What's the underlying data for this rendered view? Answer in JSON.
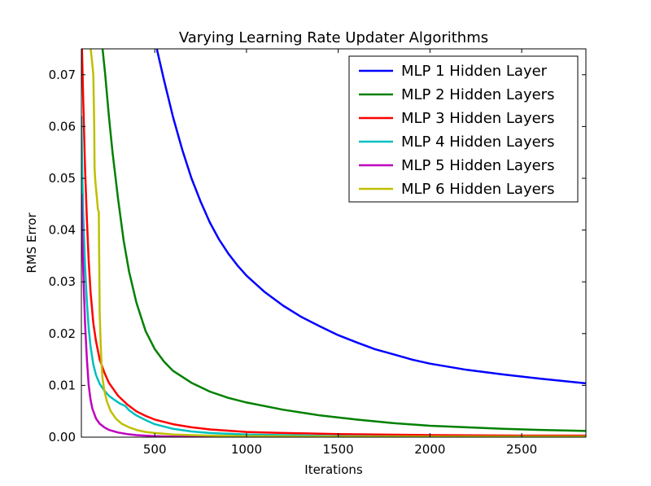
{
  "chart_data": {
    "type": "line",
    "title": "Varying Learning Rate Updater Algorithms",
    "xlabel": "Iterations",
    "ylabel": "RMS Error",
    "xlim": [
      100,
      2850
    ],
    "ylim": [
      0.0,
      0.075
    ],
    "xticks": [
      500,
      1000,
      1500,
      2000,
      2500
    ],
    "yticks": [
      0.0,
      0.01,
      0.02,
      0.03,
      0.04,
      0.05,
      0.06,
      0.07
    ],
    "ytick_labels": [
      "0.00",
      "0.01",
      "0.02",
      "0.03",
      "0.04",
      "0.05",
      "0.06",
      "0.07"
    ],
    "grid": false,
    "legend_position": "top-right",
    "series": [
      {
        "name": "MLP 1 Hidden Layer",
        "color": "#0000ff",
        "x": [
          510,
          550,
          600,
          650,
          700,
          750,
          800,
          850,
          900,
          950,
          1000,
          1100,
          1200,
          1300,
          1400,
          1500,
          1600,
          1700,
          1800,
          1900,
          2000,
          2200,
          2400,
          2600,
          2850
        ],
        "y": [
          0.0752,
          0.069,
          0.0618,
          0.0555,
          0.05,
          0.0455,
          0.0415,
          0.0382,
          0.0355,
          0.0332,
          0.0312,
          0.028,
          0.0254,
          0.0232,
          0.0214,
          0.0197,
          0.0183,
          0.017,
          0.016,
          0.015,
          0.0142,
          0.013,
          0.0121,
          0.0113,
          0.0104
        ]
      },
      {
        "name": "MLP 2 Hidden Layers",
        "color": "#008000",
        "x": [
          215,
          230,
          250,
          270,
          300,
          330,
          360,
          400,
          450,
          500,
          550,
          600,
          700,
          800,
          900,
          1000,
          1200,
          1400,
          1600,
          1800,
          2000,
          2200,
          2400,
          2600,
          2850
        ],
        "y": [
          0.0752,
          0.07,
          0.062,
          0.055,
          0.046,
          0.038,
          0.032,
          0.026,
          0.0205,
          0.017,
          0.0146,
          0.0128,
          0.0105,
          0.0088,
          0.0076,
          0.0067,
          0.0053,
          0.0042,
          0.0034,
          0.0027,
          0.0022,
          0.0019,
          0.0016,
          0.0014,
          0.0012
        ]
      },
      {
        "name": "MLP 3 Hidden Layers",
        "color": "#ff0000",
        "x": [
          103,
          110,
          120,
          130,
          140,
          150,
          165,
          180,
          200,
          225,
          250,
          300,
          350,
          400,
          450,
          500,
          600,
          700,
          800,
          1000,
          1200,
          1500,
          2000,
          2500,
          2850
        ],
        "y": [
          0.0752,
          0.065,
          0.052,
          0.042,
          0.034,
          0.028,
          0.022,
          0.0185,
          0.015,
          0.0125,
          0.0105,
          0.008,
          0.0063,
          0.005,
          0.0041,
          0.0034,
          0.0025,
          0.0019,
          0.0015,
          0.001,
          0.0008,
          0.0006,
          0.0004,
          0.0003,
          0.0003
        ]
      },
      {
        "name": "MLP 4 Hidden Layers",
        "color": "#00bfbf",
        "x": [
          100,
          105,
          110,
          120,
          130,
          140,
          150,
          165,
          180,
          200,
          225,
          250,
          280,
          310,
          340,
          360,
          400,
          450,
          500,
          600,
          700,
          800,
          1000,
          1500,
          2000,
          2850
        ],
        "y": [
          0.062,
          0.051,
          0.043,
          0.033,
          0.026,
          0.021,
          0.0175,
          0.014,
          0.012,
          0.0103,
          0.009,
          0.008,
          0.0072,
          0.0065,
          0.006,
          0.0052,
          0.0042,
          0.0033,
          0.0025,
          0.0016,
          0.0011,
          0.0008,
          0.0005,
          0.0002,
          0.0001,
          0.0001
        ]
      },
      {
        "name": "MLP 5 Hidden Layers",
        "color": "#bf00bf",
        "x": [
          100,
          105,
          110,
          115,
          120,
          130,
          140,
          150,
          160,
          180,
          200,
          225,
          250,
          300,
          350,
          400,
          500,
          600,
          800,
          1000,
          1500,
          2000,
          2850
        ],
        "y": [
          0.047,
          0.039,
          0.032,
          0.027,
          0.022,
          0.015,
          0.01,
          0.0072,
          0.0055,
          0.0036,
          0.0026,
          0.0019,
          0.0014,
          0.0009,
          0.0006,
          0.0004,
          0.0002,
          0.0001,
          0.0001,
          0.0,
          0.0,
          0.0,
          0.0
        ]
      },
      {
        "name": "MLP 6 Hidden Layers",
        "color": "#bfbf00",
        "x": [
          150,
          160,
          165,
          170,
          172,
          175,
          180,
          185,
          190,
          195,
          200,
          205,
          210,
          215,
          225,
          240,
          260,
          290,
          320,
          360,
          400,
          450,
          500,
          600,
          700,
          800,
          1000,
          1500,
          2000,
          2850
        ],
        "y": [
          0.0752,
          0.072,
          0.07,
          0.06,
          0.052,
          0.05,
          0.048,
          0.046,
          0.044,
          0.0435,
          0.024,
          0.018,
          0.014,
          0.0115,
          0.009,
          0.0068,
          0.005,
          0.0035,
          0.0026,
          0.0019,
          0.0014,
          0.001,
          0.0008,
          0.0005,
          0.0004,
          0.0003,
          0.0002,
          0.0001,
          0.0001,
          0.0001
        ]
      }
    ]
  }
}
